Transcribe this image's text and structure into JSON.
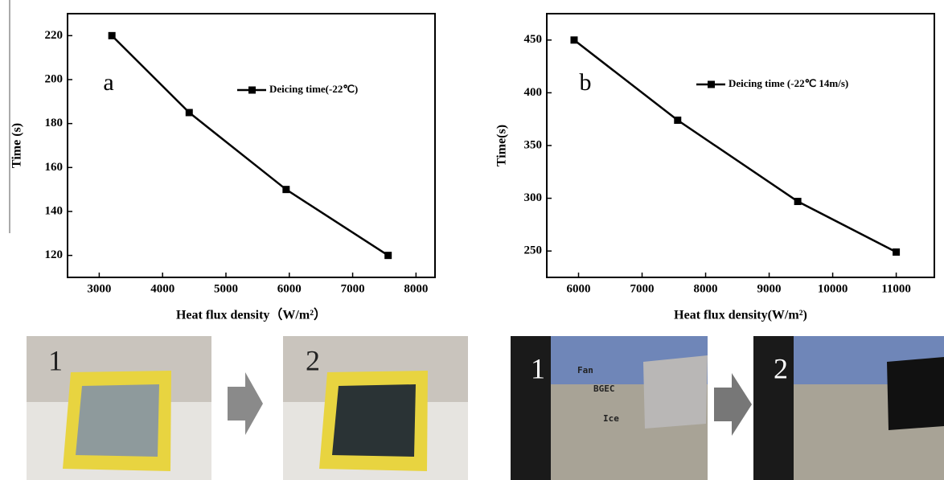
{
  "chart_data": [
    {
      "type": "line",
      "panel_label": "a",
      "xlabel": "Heat flux density（W/m²）",
      "ylabel": "Time (s)",
      "x": [
        3200,
        4420,
        5950,
        7560
      ],
      "series": [
        {
          "name": "Deicing time(-22℃)",
          "color": "#000000",
          "values": [
            220,
            185,
            150,
            120
          ]
        }
      ],
      "xlim": [
        2500,
        8300
      ],
      "xticks": [
        3000,
        4000,
        5000,
        6000,
        7000,
        8000
      ],
      "ylim": [
        110,
        230
      ],
      "yticks": [
        120,
        140,
        160,
        180,
        200,
        220
      ]
    },
    {
      "type": "line",
      "panel_label": "b",
      "xlabel": "Heat flux density(W/m²)",
      "ylabel": "Time(s)",
      "x": [
        5930,
        7560,
        9450,
        11000
      ],
      "series": [
        {
          "name": "Deicing time (-22℃ 14m/s)",
          "color": "#000000",
          "values": [
            450,
            374,
            297,
            249
          ]
        }
      ],
      "xlim": [
        5500,
        11600
      ],
      "xticks": [
        6000,
        7000,
        8000,
        9000,
        10000,
        11000
      ],
      "ylim": [
        225,
        475
      ],
      "yticks": [
        250,
        300,
        350,
        400,
        450
      ]
    }
  ],
  "photos": {
    "left": [
      "1",
      "2"
    ],
    "right": [
      "1",
      "2"
    ],
    "right_callouts": [
      "Fan",
      "BGEC",
      "Ice"
    ]
  }
}
